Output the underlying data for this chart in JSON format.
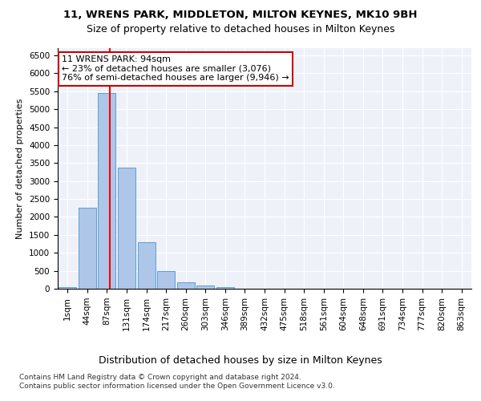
{
  "title1": "11, WRENS PARK, MIDDLETON, MILTON KEYNES, MK10 9BH",
  "title2": "Size of property relative to detached houses in Milton Keynes",
  "xlabel": "Distribution of detached houses by size in Milton Keynes",
  "ylabel": "Number of detached properties",
  "footer1": "Contains HM Land Registry data © Crown copyright and database right 2024.",
  "footer2": "Contains public sector information licensed under the Open Government Licence v3.0.",
  "bin_labels": [
    "1sqm",
    "44sqm",
    "87sqm",
    "131sqm",
    "174sqm",
    "217sqm",
    "260sqm",
    "303sqm",
    "346sqm",
    "389sqm",
    "432sqm",
    "475sqm",
    "518sqm",
    "561sqm",
    "604sqm",
    "648sqm",
    "691sqm",
    "734sqm",
    "777sqm",
    "820sqm",
    "863sqm"
  ],
  "bar_values": [
    50,
    2250,
    5450,
    3380,
    1300,
    490,
    170,
    80,
    50,
    10,
    5,
    2,
    1,
    0,
    0,
    0,
    0,
    0,
    0,
    0,
    0
  ],
  "bar_color": "#aec6e8",
  "bar_edge_color": "#5a9fd4",
  "red_line_x": 2.15,
  "annotation_text": "11 WRENS PARK: 94sqm\n← 23% of detached houses are smaller (3,076)\n76% of semi-detached houses are larger (9,946) →",
  "annotation_box_color": "#ffffff",
  "annotation_box_edge": "#cc0000",
  "ylim": [
    0,
    6700
  ],
  "yticks": [
    0,
    500,
    1000,
    1500,
    2000,
    2500,
    3000,
    3500,
    4000,
    4500,
    5000,
    5500,
    6000,
    6500
  ],
  "bg_color": "#ffffff",
  "plot_bg": "#eef2f8",
  "grid_color": "#ffffff",
  "title1_fontsize": 9.5,
  "title2_fontsize": 9.0,
  "ylabel_fontsize": 8.0,
  "xlabel_fontsize": 9.0,
  "tick_fontsize": 7.5,
  "xtick_fontsize": 7.5,
  "annotation_fontsize": 8.0,
  "footer_fontsize": 6.5
}
